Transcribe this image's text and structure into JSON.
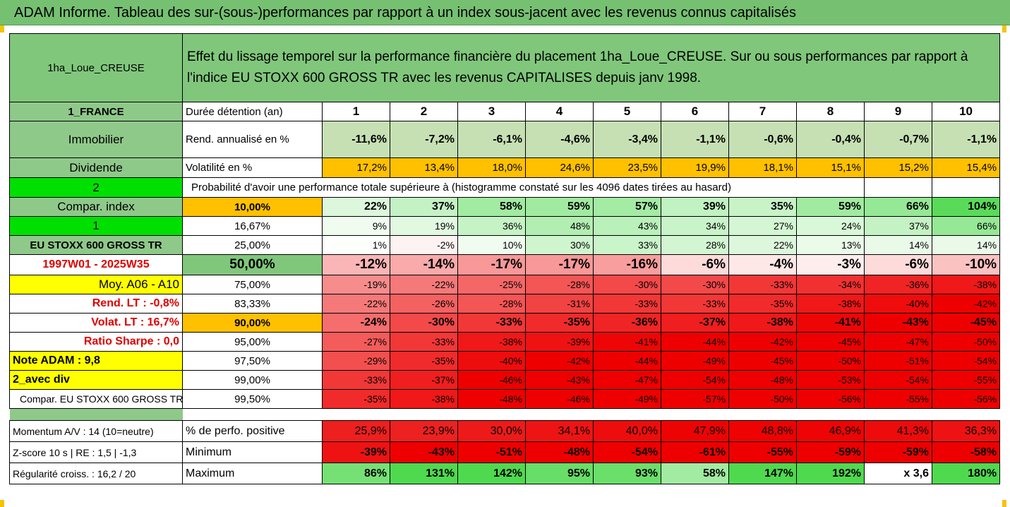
{
  "title": "ADAM Informe. Tableau des sur-(sous-)performances par rapport à un index sous-jacent avec les revenus connus capitalisés",
  "header": {
    "asset": "1ha_Loue_CREUSE",
    "description_line1": "Effet du lissage temporel sur la performance financière du placement 1ha_Loue_CREUSE. Sur ou sous performances par rapport à",
    "description_line2": "l'indice EU STOXX 600 GROSS TR avec les revenus CAPITALISES depuis janv 1998."
  },
  "left_labels": {
    "country": "1_FRANCE",
    "category": "Immobilier",
    "dividende": "Dividende",
    "code2": "2",
    "compar_index": "Compar. index",
    "code1": "1",
    "index_name": "EU STOXX 600 GROSS TR",
    "period": "1997W01 - 2025W35",
    "moy": "Moy. A06 - A10",
    "rend_lt": "Rend. LT :   -0,8%",
    "volat_lt": "Volat. LT :   16,7%",
    "sharpe": "Ratio Sharpe :    0,0",
    "note_adam": "Note ADAM : 9,8",
    "avec_div": "2_avec div",
    "compar_full": "Compar. EU STOXX 600 GROSS TR",
    "momentum": "Momentum A/V : 14 (10=neutre)",
    "zscore": "Z-score 10 s  | RE : 1,5  | -1,3",
    "regularite": "Régularité croiss. : 16,2 / 20"
  },
  "row_labels": {
    "duree": "Durée détention (an)",
    "rend": "Rend. annualisé en %",
    "volat": "Volatilité en %",
    "proba": "Probabilité d'avoir une performance totale supérieure à (histogramme constaté sur les 4096 dates tirées au hasard)",
    "perfo_pos": "% de perfo. positive",
    "minimum": "Minimum",
    "maximum": "Maximum"
  },
  "years": [
    "1",
    "2",
    "3",
    "4",
    "5",
    "6",
    "7",
    "8",
    "9",
    "10"
  ],
  "rend": [
    "-11,6%",
    "-7,2%",
    "-6,1%",
    "-4,6%",
    "-3,4%",
    "-1,1%",
    "-0,6%",
    "-0,4%",
    "-0,7%",
    "-1,1%"
  ],
  "volat": [
    "17,2%",
    "13,4%",
    "18,0%",
    "24,6%",
    "23,5%",
    "19,9%",
    "18,1%",
    "15,1%",
    "15,2%",
    "15,4%"
  ],
  "percentile_rows": [
    {
      "pct": "10,00%",
      "values": [
        "22%",
        "37%",
        "58%",
        "59%",
        "57%",
        "39%",
        "35%",
        "59%",
        "66%",
        "104%"
      ]
    },
    {
      "pct": "16,67%",
      "values": [
        "9%",
        "19%",
        "36%",
        "48%",
        "43%",
        "34%",
        "27%",
        "24%",
        "37%",
        "66%"
      ]
    },
    {
      "pct": "25,00%",
      "values": [
        "1%",
        "-2%",
        "10%",
        "30%",
        "33%",
        "28%",
        "22%",
        "13%",
        "14%",
        "14%"
      ]
    },
    {
      "pct": "50,00%",
      "values": [
        "-12%",
        "-14%",
        "-17%",
        "-17%",
        "-16%",
        "-6%",
        "-4%",
        "-3%",
        "-6%",
        "-10%"
      ]
    },
    {
      "pct": "75,00%",
      "values": [
        "-19%",
        "-22%",
        "-25%",
        "-28%",
        "-30%",
        "-30%",
        "-33%",
        "-34%",
        "-36%",
        "-38%"
      ]
    },
    {
      "pct": "83,33%",
      "values": [
        "-22%",
        "-26%",
        "-28%",
        "-31%",
        "-33%",
        "-33%",
        "-35%",
        "-38%",
        "-40%",
        "-42%"
      ]
    },
    {
      "pct": "90,00%",
      "values": [
        "-24%",
        "-30%",
        "-33%",
        "-35%",
        "-36%",
        "-37%",
        "-38%",
        "-41%",
        "-43%",
        "-45%"
      ]
    },
    {
      "pct": "95,00%",
      "values": [
        "-27%",
        "-33%",
        "-38%",
        "-39%",
        "-41%",
        "-44%",
        "-42%",
        "-45%",
        "-47%",
        "-50%"
      ]
    },
    {
      "pct": "97,50%",
      "values": [
        "-29%",
        "-35%",
        "-40%",
        "-42%",
        "-44%",
        "-49%",
        "-45%",
        "-50%",
        "-51%",
        "-54%"
      ]
    },
    {
      "pct": "99,00%",
      "values": [
        "-33%",
        "-37%",
        "-46%",
        "-43%",
        "-47%",
        "-54%",
        "-48%",
        "-53%",
        "-54%",
        "-55%"
      ]
    },
    {
      "pct": "99,50%",
      "values": [
        "-35%",
        "-38%",
        "-48%",
        "-46%",
        "-49%",
        "-57%",
        "-50%",
        "-56%",
        "-55%",
        "-56%"
      ]
    }
  ],
  "perfo_pos": [
    "25,9%",
    "23,9%",
    "30,0%",
    "34,1%",
    "40,0%",
    "47,9%",
    "48,8%",
    "46,9%",
    "41,3%",
    "36,3%"
  ],
  "minimum": [
    "-39%",
    "-43%",
    "-51%",
    "-48%",
    "-54%",
    "-61%",
    "-55%",
    "-59%",
    "-59%",
    "-58%"
  ],
  "maximum": [
    "86%",
    "131%",
    "142%",
    "95%",
    "93%",
    "58%",
    "147%",
    "192%",
    "x 3,6",
    "180%"
  ],
  "colors": {
    "title_green": "#76c072",
    "header_green": "#80c77c",
    "orange": "#ffc000",
    "yellow": "#ffff00",
    "lime": "#00e000",
    "red": "#e00000",
    "pale_green": "#c6e0b4"
  }
}
